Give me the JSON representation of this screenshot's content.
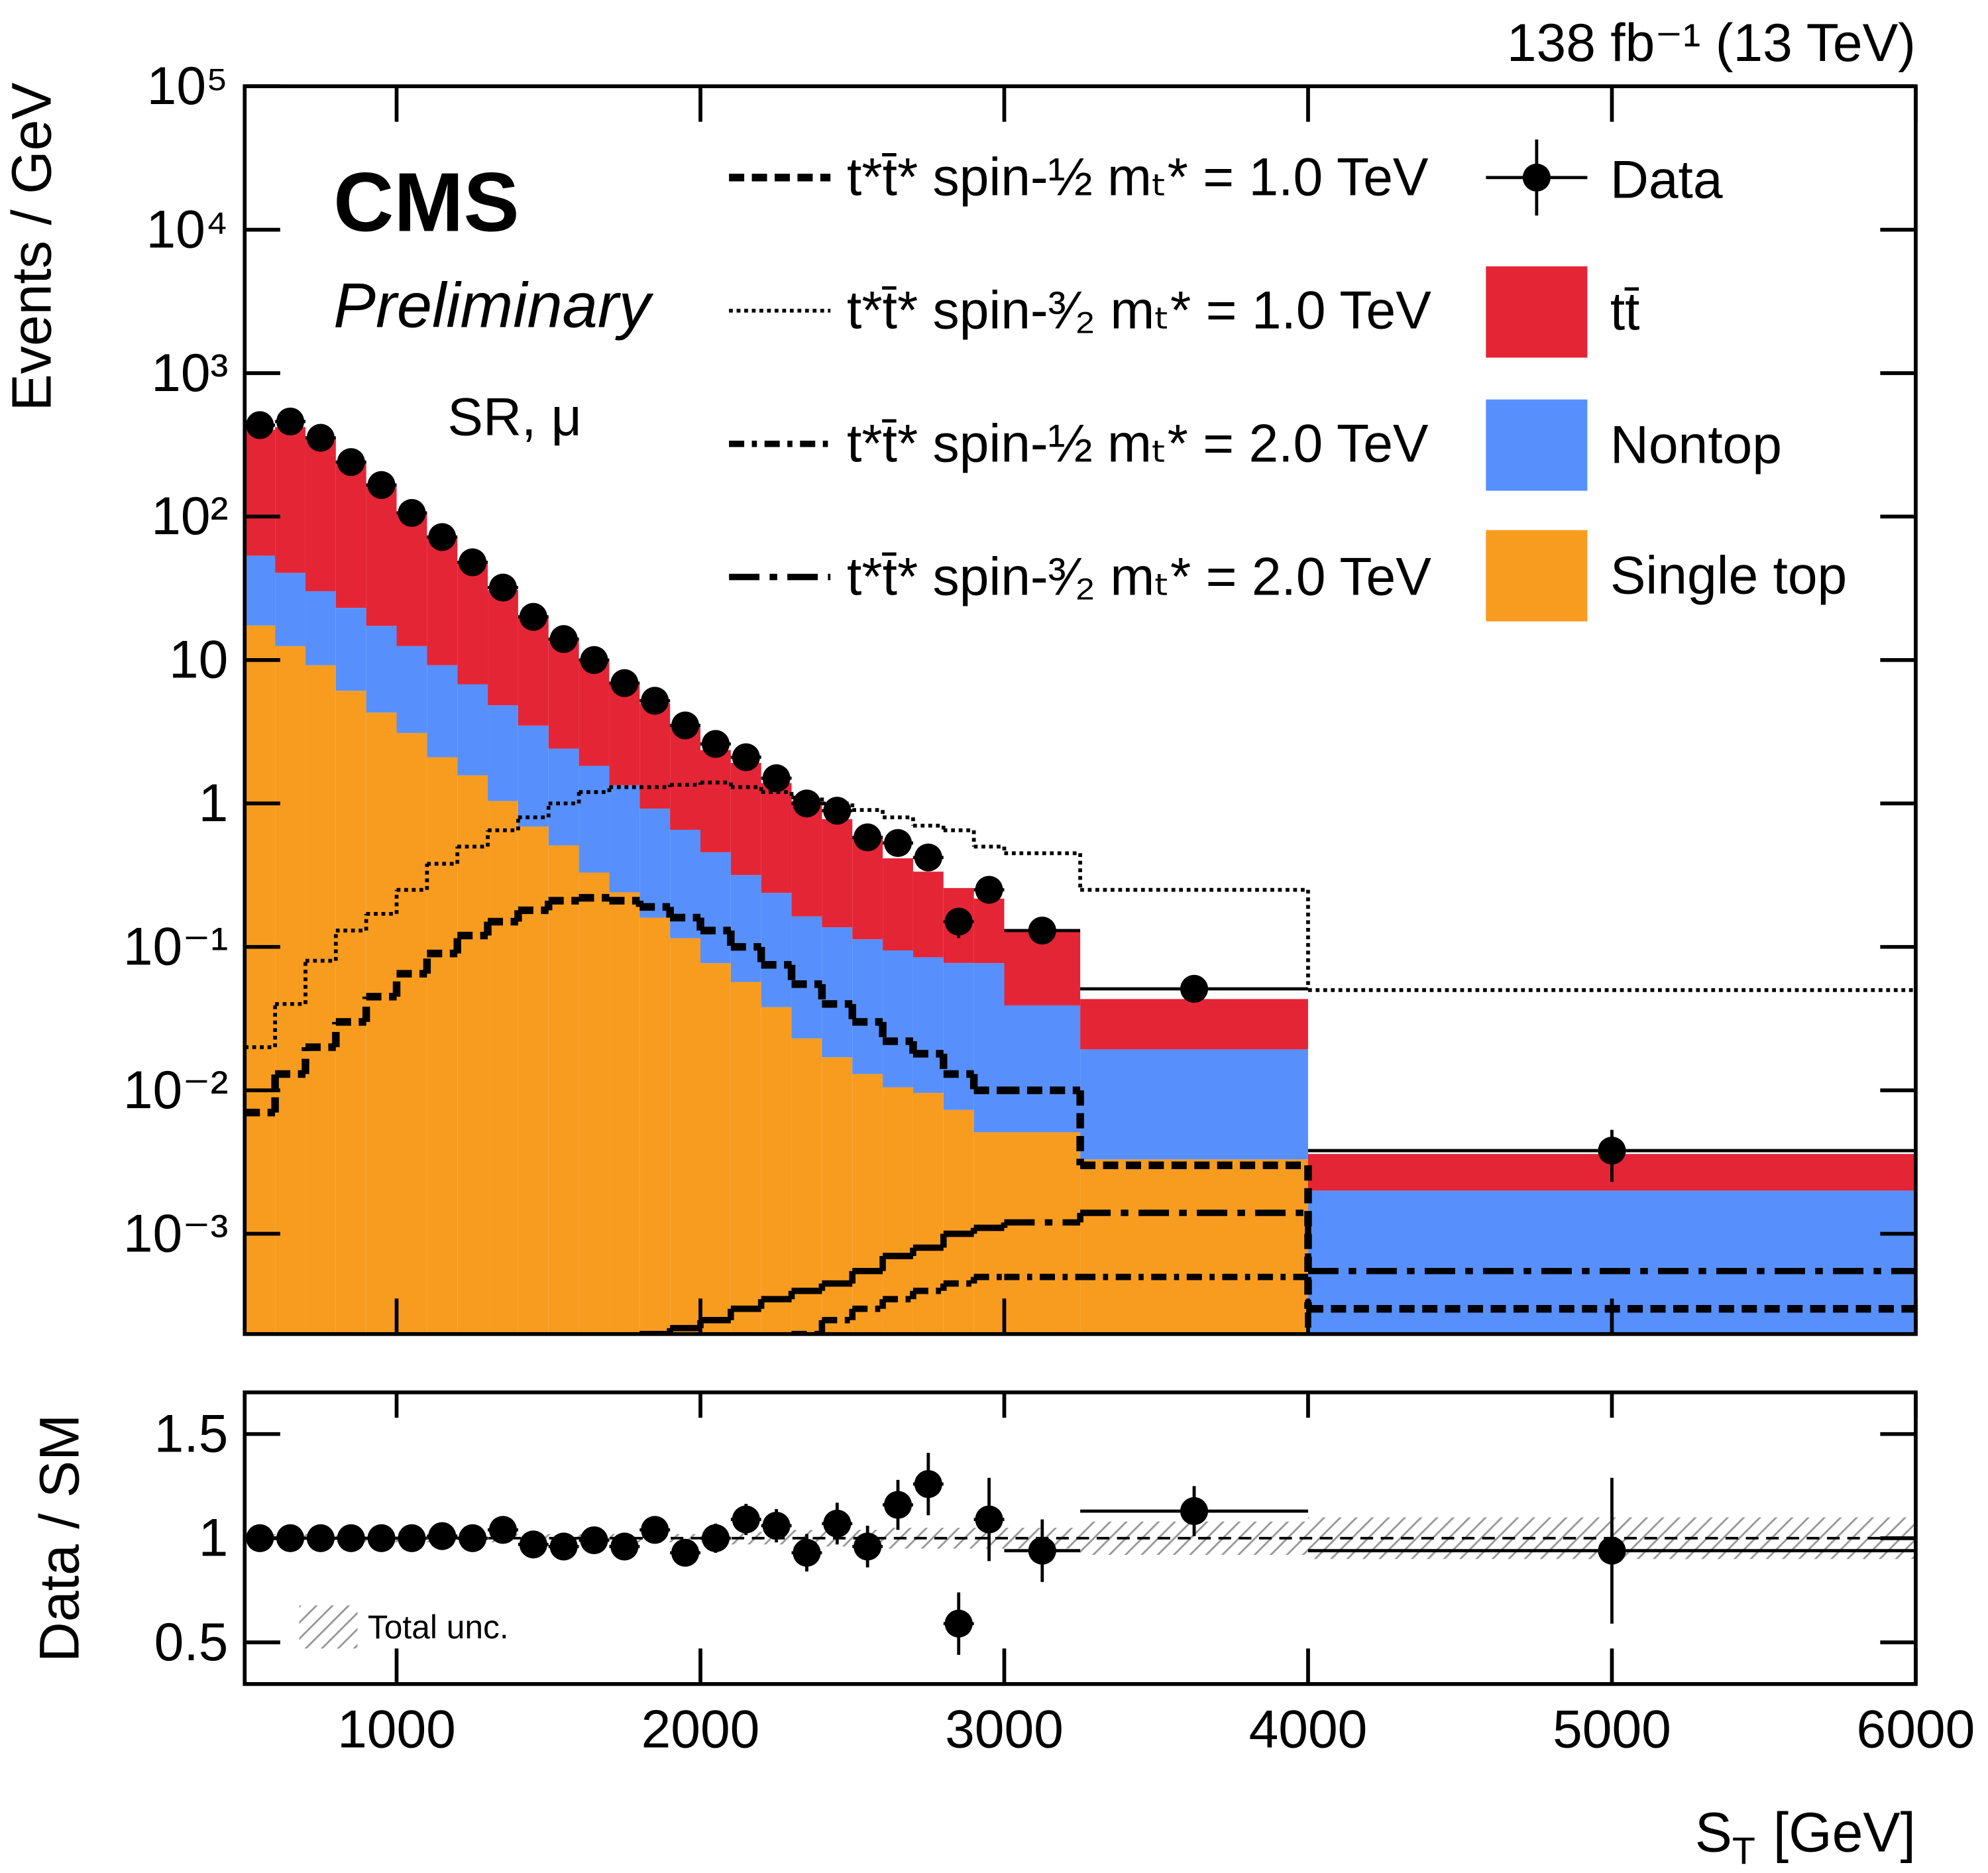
{
  "chart_data": [
    {
      "type": "histogram",
      "log_y": true,
      "lumi_label": "138 fb⁻¹ (13 TeV)",
      "experiment": "CMS",
      "status": "Preliminary",
      "region": "SR, μ",
      "ylabel": "Events / GeV",
      "bins": [
        500,
        600,
        700,
        800,
        900,
        1000,
        1100,
        1200,
        1300,
        1400,
        1500,
        1600,
        1700,
        1800,
        1900,
        2000,
        2100,
        2200,
        2300,
        2400,
        2500,
        2600,
        2700,
        2800,
        2900,
        3000,
        3250,
        4000,
        6000
      ],
      "xlim": [
        500,
        6000
      ],
      "ylim": [
        0.0002,
        100000
      ],
      "yticks": [
        {
          "value": 0.001,
          "label": "10⁻³"
        },
        {
          "value": 0.01,
          "label": "10⁻²"
        },
        {
          "value": 0.1,
          "label": "10⁻¹"
        },
        1,
        10,
        {
          "value": 100,
          "label": "10²"
        },
        {
          "value": 1000,
          "label": "10³"
        },
        {
          "value": 10000,
          "label": "10⁴"
        },
        {
          "value": 100000,
          "label": "10⁵"
        }
      ],
      "stack": [
        {
          "name": "Single top",
          "color": "#f89c20",
          "values": [
            17.4,
            12.5,
            9.2,
            6.1,
            4.3,
            3.1,
            2.1,
            1.57,
            1.04,
            0.69,
            0.51,
            0.33,
            0.24,
            0.16,
            0.115,
            0.077,
            0.057,
            0.038,
            0.023,
            0.017,
            0.013,
            0.0105,
            0.0096,
            0.0073,
            0.0051,
            0.0051,
            0.0033,
            0.0001
          ]
        },
        {
          "name": "Nontop",
          "color": "#5790fc",
          "values": [
            36,
            28,
            21,
            17,
            13,
            9.4,
            7.1,
            5.2,
            3.8,
            2.8,
            1.9,
            1.5,
            1.1,
            0.76,
            0.54,
            0.38,
            0.26,
            0.2,
            0.14,
            0.12,
            0.1,
            0.084,
            0.075,
            0.07,
            0.072,
            0.034,
            0.016,
            0.0019
          ]
        },
        {
          "name": "tt̄",
          "color": "#e42536",
          "values": [
            350,
            380,
            320,
            215,
            148,
            94,
            63,
            41,
            26,
            16.5,
            11.5,
            8.2,
            5.6,
            4.1,
            2.9,
            1.9,
            1.6,
            1.15,
            0.88,
            0.64,
            0.47,
            0.32,
            0.25,
            0.18,
            0.14,
            0.09,
            0.024,
            0.0016
          ]
        }
      ],
      "signals": [
        {
          "name": "t*t̄* spin-½ mₜ* = 1.0 TeV",
          "style": "dashed",
          "color": "#000000",
          "values": [
            0.007,
            0.013,
            0.02,
            0.03,
            0.045,
            0.065,
            0.09,
            0.12,
            0.15,
            0.18,
            0.21,
            0.22,
            0.21,
            0.19,
            0.16,
            0.13,
            0.1,
            0.075,
            0.055,
            0.04,
            0.03,
            0.022,
            0.018,
            0.013,
            0.01,
            0.01,
            0.003,
            0.0003
          ]
        },
        {
          "name": "t*t̄* spin-³⁄₂ mₜ* = 1.0 TeV",
          "style": "dotted",
          "color": "#000000",
          "values": [
            0.02,
            0.04,
            0.08,
            0.13,
            0.17,
            0.25,
            0.38,
            0.5,
            0.65,
            0.8,
            1.0,
            1.2,
            1.3,
            1.3,
            1.35,
            1.4,
            1.3,
            1.2,
            1.1,
            1.0,
            0.9,
            0.8,
            0.7,
            0.65,
            0.5,
            0.45,
            0.25,
            0.05
          ]
        },
        {
          "name": "t*t̄* spin-½ mₜ* = 2.0 TeV",
          "style": "dashdot",
          "color": "#000000",
          "values": [
            0.00018,
            0.00018,
            0.00018,
            0.00018,
            0.00018,
            0.00018,
            0.00018,
            0.00018,
            0.00018,
            0.00018,
            0.00018,
            0.00018,
            0.00018,
            0.00018,
            0.00018,
            0.00018,
            0.00018,
            0.00018,
            0.0002,
            0.00025,
            0.0003,
            0.00035,
            0.0004,
            0.00045,
            0.0005,
            0.0005,
            0.0005,
            0.00018
          ]
        },
        {
          "name": "t*t̄* spin-³⁄₂ mₜ* = 2.0 TeV",
          "style": "longdashdot",
          "color": "#000000",
          "values": [
            0.00018,
            0.00018,
            0.00018,
            0.00018,
            0.00018,
            0.00018,
            0.00018,
            0.00018,
            0.00018,
            0.00018,
            0.00018,
            0.00018,
            0.00018,
            0.0002,
            0.00022,
            0.00025,
            0.0003,
            0.00035,
            0.0004,
            0.00045,
            0.00055,
            0.0007,
            0.0008,
            0.001,
            0.0011,
            0.0012,
            0.0014,
            0.00055
          ]
        }
      ],
      "data": {
        "name": "Data",
        "color": "#000000",
        "values": [
          434,
          460,
          354,
          240,
          166,
          106,
          72,
          48,
          32,
          20,
          14,
          10,
          6.9,
          5.2,
          3.5,
          2.6,
          2.1,
          1.5,
          1.0,
          0.89,
          0.58,
          0.53,
          0.42,
          0.15,
          0.25,
          0.13,
          0.051,
          0.0038
        ],
        "errors": [
          4,
          5,
          4,
          3,
          2.5,
          2,
          1.5,
          1.2,
          1,
          0.7,
          0.55,
          0.45,
          0.35,
          0.3,
          0.22,
          0.18,
          0.15,
          0.12,
          0.09,
          0.08,
          0.06,
          0.06,
          0.055,
          0.035,
          0.05,
          0.02,
          0.006,
          0.0015
        ]
      }
    },
    {
      "type": "ratio",
      "ylabel": "Data / SM",
      "xlabel": {
        "symbol": "S",
        "subscript": "T",
        "unit": "[GeV]"
      },
      "xticks": [
        1000,
        2000,
        3000,
        4000,
        5000,
        6000
      ],
      "ylim": [
        0.3,
        1.7
      ],
      "yticks": [
        0.5,
        1,
        1.5
      ],
      "reference_line": 1,
      "values": [
        1.0,
        1.0,
        1.0,
        1.0,
        1.0,
        1.0,
        1.01,
        1.0,
        1.04,
        0.97,
        0.96,
        0.99,
        0.96,
        1.04,
        0.93,
        1.0,
        1.09,
        1.06,
        0.93,
        1.07,
        0.96,
        1.16,
        1.26,
        0.59,
        1.09,
        0.94,
        1.13,
        0.94
      ],
      "errors": [
        0.01,
        0.01,
        0.01,
        0.012,
        0.015,
        0.018,
        0.02,
        0.025,
        0.03,
        0.035,
        0.04,
        0.045,
        0.05,
        0.055,
        0.06,
        0.07,
        0.075,
        0.08,
        0.09,
        0.1,
        0.1,
        0.12,
        0.15,
        0.15,
        0.2,
        0.15,
        0.12,
        0.35
      ],
      "band": {
        "name": "Total unc.",
        "values": [
          0.02,
          0.02,
          0.02,
          0.02,
          0.02,
          0.02,
          0.02,
          0.02,
          0.02,
          0.02,
          0.02,
          0.02,
          0.02,
          0.02,
          0.02,
          0.02,
          0.03,
          0.03,
          0.04,
          0.04,
          0.04,
          0.05,
          0.05,
          0.05,
          0.05,
          0.05,
          0.08,
          0.1
        ]
      }
    }
  ]
}
